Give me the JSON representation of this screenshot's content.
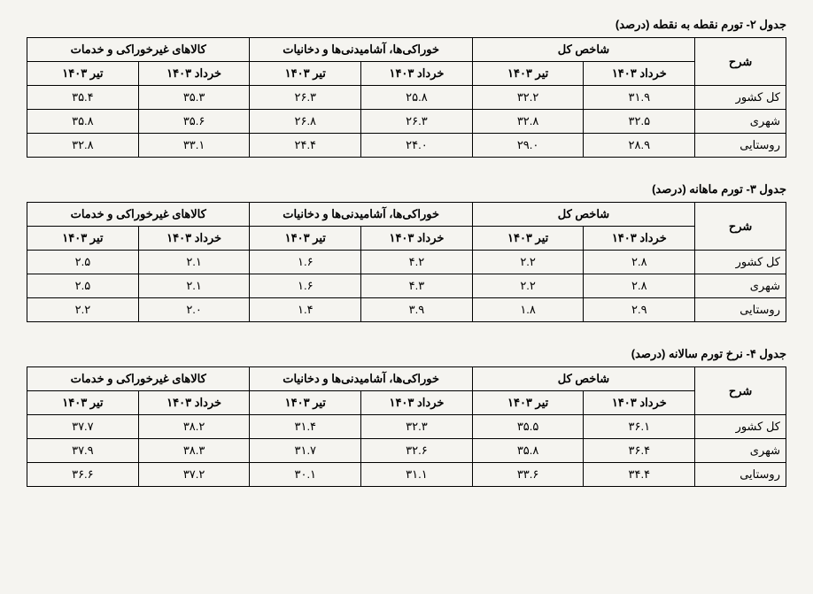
{
  "tables": [
    {
      "title": "جدول ۲- تورم نقطه به نقطه (درصد)",
      "desc_header": "شرح",
      "group_headers": [
        "شاخص کل",
        "خوراکی‌ها، آشامیدنی‌ها و دخانیات",
        "کالاهای غیرخوراکی و خدمات"
      ],
      "sub_headers": [
        "خرداد ۱۴۰۳",
        "تیر ۱۴۰۳",
        "خرداد ۱۴۰۳",
        "تیر ۱۴۰۳",
        "خرداد ۱۴۰۳",
        "تیر ۱۴۰۳"
      ],
      "rows": [
        {
          "label": "کل کشور",
          "cells": [
            "۳۱.۹",
            "۳۲.۲",
            "۲۵.۸",
            "۲۶.۳",
            "۳۵.۳",
            "۳۵.۴"
          ]
        },
        {
          "label": "شهری",
          "cells": [
            "۳۲.۵",
            "۳۲.۸",
            "۲۶.۳",
            "۲۶.۸",
            "۳۵.۶",
            "۳۵.۸"
          ]
        },
        {
          "label": "روستایی",
          "cells": [
            "۲۸.۹",
            "۲۹.۰",
            "۲۴.۰",
            "۲۴.۴",
            "۳۳.۱",
            "۳۲.۸"
          ]
        }
      ]
    },
    {
      "title": "جدول ۳- تورم ماهانه (درصد)",
      "desc_header": "شرح",
      "group_headers": [
        "شاخص کل",
        "خوراکی‌ها، آشامیدنی‌ها و دخانیات",
        "کالاهای غیرخوراکی و خدمات"
      ],
      "sub_headers": [
        "خرداد ۱۴۰۳",
        "تیر ۱۴۰۳",
        "خرداد ۱۴۰۳",
        "تیر ۱۴۰۳",
        "خرداد ۱۴۰۳",
        "تیر ۱۴۰۳"
      ],
      "rows": [
        {
          "label": "کل کشور",
          "cells": [
            "۲.۸",
            "۲.۲",
            "۴.۲",
            "۱.۶",
            "۲.۱",
            "۲.۵"
          ]
        },
        {
          "label": "شهری",
          "cells": [
            "۲.۸",
            "۲.۲",
            "۴.۳",
            "۱.۶",
            "۲.۱",
            "۲.۵"
          ]
        },
        {
          "label": "روستایی",
          "cells": [
            "۲.۹",
            "۱.۸",
            "۳.۹",
            "۱.۴",
            "۲.۰",
            "۲.۲"
          ]
        }
      ]
    },
    {
      "title": "جدول ۴- نرخ تورم سالانه (درصد)",
      "desc_header": "شرح",
      "group_headers": [
        "شاخص کل",
        "خوراکی‌ها، آشامیدنی‌ها و دخانیات",
        "کالاهای غیرخوراکی و خدمات"
      ],
      "sub_headers": [
        "خرداد ۱۴۰۳",
        "تیر ۱۴۰۳",
        "خرداد ۱۴۰۳",
        "تیر ۱۴۰۳",
        "خرداد ۱۴۰۳",
        "تیر ۱۴۰۳"
      ],
      "rows": [
        {
          "label": "کل کشور",
          "cells": [
            "۳۶.۱",
            "۳۵.۵",
            "۳۲.۳",
            "۳۱.۴",
            "۳۸.۲",
            "۳۷.۷"
          ]
        },
        {
          "label": "شهری",
          "cells": [
            "۳۶.۴",
            "۳۵.۸",
            "۳۲.۶",
            "۳۱.۷",
            "۳۸.۳",
            "۳۷.۹"
          ]
        },
        {
          "label": "روستایی",
          "cells": [
            "۳۴.۴",
            "۳۳.۶",
            "۳۱.۱",
            "۳۰.۱",
            "۳۷.۲",
            "۳۶.۶"
          ]
        }
      ]
    }
  ]
}
